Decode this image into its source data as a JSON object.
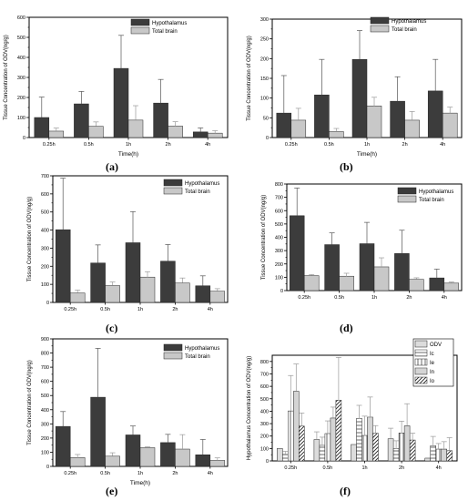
{
  "chart_data": [
    {
      "type": "bar",
      "categories": [
        "0.25h",
        "0.5h",
        "1h",
        "2h",
        "4h"
      ],
      "series": [
        {
          "name": "Hypothalamus",
          "values": [
            100,
            168,
            345,
            172,
            28
          ],
          "errors": [
            102,
            62,
            165,
            118,
            20
          ]
        },
        {
          "name": "Total brain",
          "values": [
            32,
            56,
            87,
            57,
            22
          ],
          "errors": [
            15,
            22,
            72,
            22,
            12
          ]
        }
      ],
      "xlabel": "Time(h)",
      "ylabel": "Tissue Concentration of ODV(ng/g)",
      "yticks": [
        0,
        100,
        200,
        300,
        400,
        500,
        600
      ],
      "ylim": [
        0,
        600
      ],
      "legend_position": "top-right",
      "caption": "(a)"
    },
    {
      "type": "bar",
      "categories": [
        "0.25h",
        "0.5h",
        "1h",
        "2h",
        "4h"
      ],
      "series": [
        {
          "name": "Hypothalamus",
          "values": [
            62,
            108,
            198,
            92,
            118
          ],
          "errors": [
            95,
            90,
            73,
            62,
            80
          ]
        },
        {
          "name": "Total brain",
          "values": [
            44,
            15,
            80,
            44,
            62
          ],
          "errors": [
            30,
            8,
            22,
            22,
            15
          ]
        }
      ],
      "xlabel": "Time(h)",
      "ylabel": "Tissue Concentration of ODV(ng/g)",
      "yticks": [
        0,
        50,
        100,
        150,
        200,
        250,
        300
      ],
      "ylim": [
        0,
        300
      ],
      "legend_position": "top-right",
      "caption": "(b)"
    },
    {
      "type": "bar",
      "categories": [
        "0.25h",
        "0.5h",
        "1h",
        "2h",
        "4h"
      ],
      "series": [
        {
          "name": "Hypothalamus",
          "values": [
            402,
            218,
            330,
            228,
            92
          ],
          "errors": [
            285,
            100,
            172,
            92,
            55
          ]
        },
        {
          "name": "Total brain",
          "values": [
            52,
            93,
            140,
            107,
            62
          ],
          "errors": [
            16,
            20,
            30,
            28,
            14
          ]
        }
      ],
      "xlabel": "",
      "ylabel": "Tissue Concentration of ODV(ng/g)",
      "yticks": [
        0,
        100,
        200,
        300,
        400,
        500,
        600,
        700
      ],
      "ylim": [
        0,
        700
      ],
      "legend_position": "top-right",
      "caption": "(c)"
    },
    {
      "type": "bar",
      "categories": [
        "0.25h",
        "0.5h",
        "1h",
        "2h",
        "4h"
      ],
      "series": [
        {
          "name": "Hypothalamus",
          "values": [
            562,
            345,
            352,
            278,
            95
          ],
          "errors": [
            208,
            88,
            160,
            175,
            66
          ]
        },
        {
          "name": "Total brain",
          "values": [
            112,
            108,
            178,
            84,
            56
          ],
          "errors": [
            8,
            22,
            68,
            12,
            8
          ]
        }
      ],
      "xlabel": "",
      "ylabel": "Tissue Concentration of ODV(ng/g)",
      "yticks": [
        0,
        100,
        200,
        300,
        400,
        500,
        600,
        700,
        800
      ],
      "ylim": [
        0,
        800
      ],
      "legend_position": "top-right",
      "caption": "(d)"
    },
    {
      "type": "bar",
      "categories": [
        "0.25h",
        "0.5h",
        "1h",
        "2h",
        "4h"
      ],
      "series": [
        {
          "name": "Hypothalamus",
          "values": [
            282,
            488,
            222,
            168,
            82
          ],
          "errors": [
            105,
            345,
            63,
            58,
            108
          ]
        },
        {
          "name": "Total brain",
          "values": [
            62,
            72,
            132,
            122,
            42
          ],
          "errors": [
            22,
            24,
            6,
            102,
            18
          ]
        }
      ],
      "xlabel": "Time(h)",
      "ylabel": "Tissue Concentration of ODV(ng/g)",
      "yticks": [
        0,
        100,
        200,
        300,
        400,
        500,
        600,
        700,
        800,
        900
      ],
      "ylim": [
        0,
        900
      ],
      "legend_position": "top-right",
      "caption": "(e)"
    },
    {
      "type": "bar",
      "categories": [
        "0.25h",
        "0.5h",
        "1h",
        "2h",
        "4h"
      ],
      "series": [
        {
          "name": "ODV",
          "values": [
            100,
            172,
            132,
            178,
            22
          ],
          "errors": [
            0,
            62,
            0,
            85,
            2
          ]
        },
        {
          "name": "Ic",
          "values": [
            52,
            125,
            342,
            100,
            122
          ],
          "errors": [
            25,
            66,
            105,
            62,
            75
          ]
        },
        {
          "name": "Ie",
          "values": [
            402,
            220,
            205,
            225,
            95
          ],
          "errors": [
            285,
            102,
            155,
            95,
            45
          ]
        },
        {
          "name": "In",
          "values": [
            560,
            345,
            352,
            282,
            95
          ],
          "errors": [
            220,
            88,
            162,
            178,
            60
          ]
        },
        {
          "name": "Io",
          "values": [
            280,
            488,
            222,
            168,
            82
          ],
          "errors": [
            105,
            345,
            62,
            55,
            105
          ]
        }
      ],
      "xlabel": "",
      "ylabel": "Hypothalamus Concentration of ODV(ng/g)",
      "yticks": [
        0,
        100,
        200,
        300,
        400,
        500,
        600,
        700,
        800
      ],
      "ylim": [
        0,
        850
      ],
      "legend_position": "top-right",
      "caption": "(f)"
    }
  ]
}
